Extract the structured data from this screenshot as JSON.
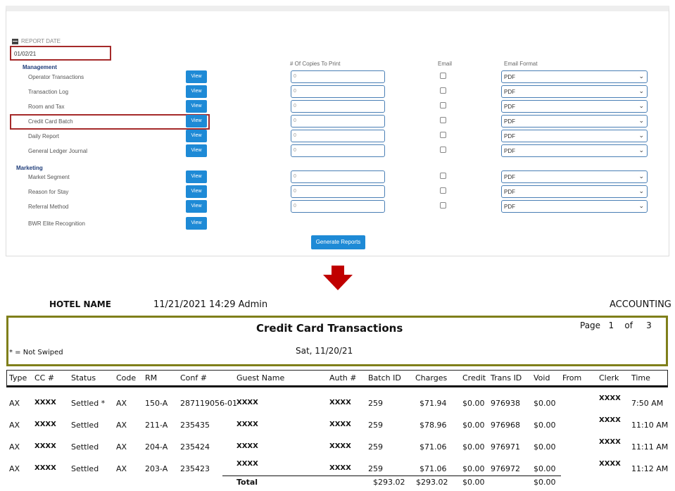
{
  "form": {
    "report_date_label": "REPORT DATE",
    "report_date_value": "01/02/21",
    "columns": {
      "copies": "# Of Copies To Print",
      "email": "Email",
      "email_format": "Email Format"
    },
    "sections": [
      {
        "name": "Management"
      },
      {
        "name": "Marketing"
      }
    ],
    "rows": [
      {
        "label": "Operator Transactions",
        "view": "View",
        "copies": "0",
        "format": "PDF"
      },
      {
        "label": "Transaction Log",
        "view": "View",
        "copies": "0",
        "format": "PDF"
      },
      {
        "label": "Room and Tax",
        "view": "View",
        "copies": "0",
        "format": "PDF"
      },
      {
        "label": "Credit Card Batch",
        "view": "View",
        "copies": "0",
        "format": "PDF"
      },
      {
        "label": "Daily Report",
        "view": "View",
        "copies": "0",
        "format": "PDF"
      },
      {
        "label": "General Ledger Journal",
        "view": "View",
        "copies": "0",
        "format": "PDF"
      },
      {
        "label": "Market Segment",
        "view": "View",
        "copies": "0",
        "format": "PDF"
      },
      {
        "label": "Reason for Stay",
        "view": "View",
        "copies": "0",
        "format": "PDF"
      },
      {
        "label": "Referral Method",
        "view": "View",
        "copies": "0",
        "format": "PDF"
      },
      {
        "label": "BWR Elite Recognition",
        "view": "View"
      }
    ],
    "generate_button": "Generate Reports"
  },
  "report": {
    "hotel_name": "HOTEL NAME",
    "run_datetime": "11/21/2021 14:29",
    "user": "Admin",
    "department": "ACCOUNTING",
    "title": "Credit Card Transactions",
    "page_label": "Page",
    "page_number": "1",
    "of_label": "of",
    "page_total": "3",
    "legend": "* = Not Swiped",
    "report_date": "Sat, 11/20/21",
    "columns": [
      "Type",
      "CC #",
      "Status",
      "Code",
      "RM",
      "Conf #",
      "Guest Name",
      "Auth #",
      "Batch ID",
      "Charges",
      "Credit",
      "Trans ID",
      "Void",
      "From",
      "Clerk",
      "Time"
    ],
    "rows": [
      {
        "type": "AX",
        "cc": "XXXX",
        "status": "Settled *",
        "code": "AX",
        "rm": "150-A",
        "conf": "287119056-01",
        "guest": "XXXX",
        "auth": "XXXX",
        "batch": "259",
        "charges": "$71.94",
        "credit": "$0.00",
        "trans": "976938",
        "void": "$0.00",
        "from": "",
        "clerk": "XXXX",
        "time": "7:50 AM"
      },
      {
        "type": "AX",
        "cc": "XXXX",
        "status": "Settled",
        "code": "AX",
        "rm": "211-A",
        "conf": "235435",
        "guest": "XXXX",
        "auth": "XXXX",
        "batch": "259",
        "charges": "$78.96",
        "credit": "$0.00",
        "trans": "976968",
        "void": "$0.00",
        "from": "",
        "clerk": "XXXX",
        "time": "11:10 AM"
      },
      {
        "type": "AX",
        "cc": "XXXX",
        "status": "Settled",
        "code": "AX",
        "rm": "204-A",
        "conf": "235424",
        "guest": "XXXX",
        "auth": "XXXX",
        "batch": "259",
        "charges": "$71.06",
        "credit": "$0.00",
        "trans": "976971",
        "void": "$0.00",
        "from": "",
        "clerk": "XXXX",
        "time": "11:11 AM"
      },
      {
        "type": "AX",
        "cc": "XXXX",
        "status": "Settled",
        "code": "AX",
        "rm": "203-A",
        "conf": "235423",
        "guest": "XXXX",
        "auth": "XXXX",
        "batch": "259",
        "charges": "$71.06",
        "credit": "$0.00",
        "trans": "976972",
        "void": "$0.00",
        "from": "",
        "clerk": "XXXX",
        "time": "11:12 AM"
      }
    ],
    "total": {
      "label": "Total",
      "batch": "$293.02",
      "charges": "$293.02",
      "credit": "$0.00",
      "void": "$0.00"
    }
  },
  "colors": {
    "view_button": "#1e8ad6",
    "highlight_border": "#a52a2a",
    "title_box_border": "#7f7f1a",
    "arrow": "#c00000"
  }
}
